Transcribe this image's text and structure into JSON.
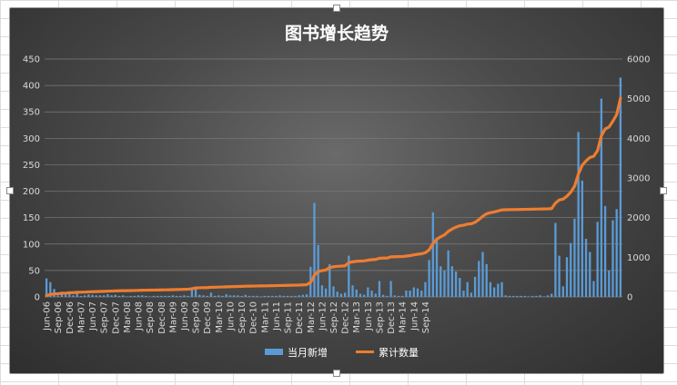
{
  "chart_data": {
    "type": "bar",
    "title": "图书增长趋势",
    "xlabel": "",
    "ylabel": "",
    "x_tick_labels": [
      "Jun-06",
      "Sep-06",
      "Dec-06",
      "Mar-07",
      "Jun-07",
      "Sep-07",
      "Dec-07",
      "Mar-08",
      "Jun-08",
      "Sep-08",
      "Dec-08",
      "Mar-09",
      "Jun-09",
      "Sep-09",
      "Dec-09",
      "Mar-10",
      "Jun-10",
      "Sep-10",
      "Dec-10",
      "Mar-11",
      "Jun-11",
      "Sep-11",
      "Dec-11",
      "Mar-12",
      "Jun-12",
      "Sep-12",
      "Dec-12",
      "Mar-13",
      "Jun-13",
      "Sep-13",
      "Dec-13",
      "Mar-14",
      "Jun-14",
      "Sep-14"
    ],
    "y_left": {
      "ylim": [
        0,
        450
      ],
      "ticks": [
        0,
        50,
        100,
        150,
        200,
        250,
        300,
        350,
        400,
        450
      ]
    },
    "y_right": {
      "ylim": [
        0,
        6000
      ],
      "ticks": [
        0,
        1000,
        2000,
        3000,
        4000,
        5000,
        6000
      ]
    },
    "legend_position": "bottom",
    "grid": true,
    "series": [
      {
        "name": "当月新增",
        "kind": "bar",
        "axis": "left",
        "color": "#5b9bd5",
        "values": [
          35,
          28,
          15,
          3,
          10,
          5,
          10,
          3,
          8,
          2,
          3,
          5,
          4,
          3,
          3,
          3,
          5,
          3,
          4,
          2,
          3,
          1,
          2,
          2,
          3,
          3,
          2,
          1,
          2,
          2,
          2,
          2,
          2,
          3,
          2,
          2,
          3,
          2,
          15,
          18,
          4,
          3,
          2,
          8,
          2,
          3,
          2,
          5,
          3,
          3,
          3,
          2,
          4,
          2,
          2,
          2,
          1,
          2,
          2,
          2,
          2,
          3,
          2,
          2,
          2,
          2,
          3,
          4,
          5,
          57,
          178,
          98,
          22,
          16,
          62,
          20,
          10,
          6,
          8,
          78,
          22,
          14,
          6,
          4,
          18,
          12,
          6,
          30,
          4,
          2,
          30,
          3,
          2,
          2,
          12,
          12,
          18,
          16,
          12,
          28,
          70,
          160,
          112,
          58,
          50,
          88,
          58,
          48,
          36,
          12,
          28,
          8,
          38,
          68,
          85,
          62,
          28,
          18,
          25,
          28,
          3,
          2,
          2,
          2,
          2,
          2,
          1,
          2,
          2,
          3,
          1,
          3,
          6,
          140,
          78,
          20,
          75,
          102,
          148,
          312,
          220,
          110,
          85,
          30,
          142,
          375,
          172,
          50,
          145,
          166,
          415
        ]
      },
      {
        "name": "累计数量",
        "kind": "line",
        "axis": "right",
        "color": "#ed7d31",
        "values": [
          35,
          63,
          78,
          81,
          91,
          96,
          106,
          109,
          117,
          119,
          122,
          127,
          131,
          134,
          137,
          140,
          145,
          148,
          152,
          154,
          157,
          158,
          160,
          162,
          165,
          168,
          170,
          171,
          173,
          175,
          177,
          179,
          181,
          184,
          186,
          188,
          191,
          193,
          208,
          226,
          230,
          233,
          235,
          243,
          245,
          248,
          250,
          255,
          258,
          261,
          264,
          266,
          270,
          272,
          274,
          276,
          277,
          279,
          281,
          283,
          285,
          288,
          290,
          292,
          294,
          296,
          299,
          303,
          308,
          365,
          543,
          641,
          663,
          679,
          741,
          761,
          771,
          777,
          785,
          863,
          885,
          899,
          905,
          909,
          927,
          939,
          945,
          975,
          979,
          981,
          1011,
          1014,
          1016,
          1018,
          1030,
          1042,
          1060,
          1076,
          1088,
          1116,
          1186,
          1346,
          1458,
          1516,
          1566,
          1654,
          1712,
          1760,
          1796,
          1808,
          1836,
          1844,
          1882,
          1950,
          2035,
          2097,
          2125,
          2143,
          2168,
          2196,
          2199,
          2201,
          2203,
          2205,
          2207,
          2209,
          2210,
          2212,
          2214,
          2217,
          2218,
          2221,
          2227,
          2367,
          2445,
          2465,
          2540,
          2642,
          2790,
          3102,
          3322,
          3432,
          3517,
          3547,
          3689,
          4064,
          4236,
          4286,
          4431,
          4597,
          5012
        ]
      }
    ]
  }
}
